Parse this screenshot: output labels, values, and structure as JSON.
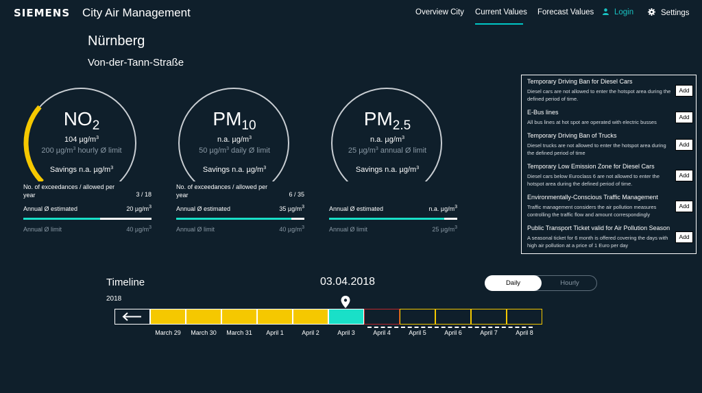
{
  "header": {
    "brand": "SIEMENS",
    "app_title": "City Air Management",
    "nav": [
      "Overview City",
      "Current Values",
      "Forecast Values"
    ],
    "active_nav": "Current Values",
    "login_label": "Login",
    "settings_label": "Settings"
  },
  "location": {
    "city": "Nürnberg",
    "street": "Von-der-Tann-Straße"
  },
  "gauges": [
    {
      "name": "NO",
      "name_sub": "2",
      "value": "104 µg/m",
      "value_sup": "3",
      "limit": "200 µg/m",
      "limit_sup": "3",
      "limit_suffix": " hourly Ø limit",
      "savings": "Savings n.a. µg/m",
      "savings_sup": "3",
      "exceedances_label": "No. of exceedances / allowed per year",
      "exceedances_value": "3 / 18",
      "annual_label": "Annual Ø estimated",
      "annual_value": "20 µg/m",
      "annual_sup": "3",
      "annual_fraction": 0.6,
      "gauge_fraction": 0.32,
      "annual_limit_label": "Annual Ø limit",
      "annual_limit_value": "40 µg/m",
      "annual_limit_sup": "3"
    },
    {
      "name": "PM",
      "name_sub": "10",
      "value": "n.a. µg/m",
      "value_sup": "3",
      "limit": "50 µg/m",
      "limit_sup": "3",
      "limit_suffix": " daily Ø limit",
      "savings": "Savings n.a. µg/m",
      "savings_sup": "3",
      "exceedances_label": "No. of exceedances / allowed per year",
      "exceedances_value": "6 / 35",
      "annual_label": "Annual Ø estimated",
      "annual_value": "35 µg/m",
      "annual_sup": "3",
      "annual_fraction": 0.9,
      "gauge_fraction": 0,
      "annual_limit_label": "Annual Ø limit",
      "annual_limit_value": "40 µg/m",
      "annual_limit_sup": "3"
    },
    {
      "name": "PM",
      "name_sub": "2.5",
      "value": "n.a. µg/m",
      "value_sup": "3",
      "limit": "25 µg/m",
      "limit_sup": "3",
      "limit_suffix": " annual Ø limit",
      "savings": "Savings n.a. µg/m",
      "savings_sup": "3",
      "exceedances_label": "",
      "exceedances_value": "",
      "annual_label": "Annual Ø estimated",
      "annual_value": "n.a. µg/m",
      "annual_sup": "3",
      "annual_fraction": 0.9,
      "gauge_fraction": 0,
      "annual_limit_label": "Annual Ø limit",
      "annual_limit_value": "25 µg/m",
      "annual_limit_sup": "3"
    }
  ],
  "measures": [
    {
      "title": "Temporary Driving Ban for Diesel Cars",
      "description": "Diesel cars are not allowed to enter the hotspot area during the defined period of time.",
      "button": "Add"
    },
    {
      "title": "E-Bus lines",
      "description": "All bus lines at hot spot are operated with electric busses",
      "button": "Add"
    },
    {
      "title": "Temporary Driving Ban of Trucks",
      "description": "Diesel trucks are not allowed to enter the hotspot area during the defined period of time",
      "button": "Add"
    },
    {
      "title": "Temporary Low Emission Zone for Diesel Cars",
      "description": "Diesel cars below Euroclass 6 are not allowed to enter the hotspot area during the defined period of time.",
      "button": "Add"
    },
    {
      "title": "Environmentally-Conscious Traffic Management",
      "description": "Traffic management considers the air pollution measures controlling the traffic flow and amount correspondingly",
      "button": "Add"
    },
    {
      "title": "Public Transport Ticket valid for Air Pollution Season",
      "description": "A seasonal ticket for 6 month is offered covering the days with high air pollution at a price of 1 Euro per day",
      "button": "Add"
    }
  ],
  "timeline": {
    "title": "Timeline",
    "year": "2018",
    "selected_date": "03.04.2018",
    "toggle": {
      "daily": "Daily",
      "hourly": "Hourly",
      "active": "Daily"
    },
    "back_icon": "arrow-left-icon",
    "days": [
      {
        "label": "March 29",
        "status": "past-high",
        "color": "#f5c800"
      },
      {
        "label": "March 30",
        "status": "past-high",
        "color": "#f5c800"
      },
      {
        "label": "March 31",
        "status": "past-high",
        "color": "#f5c800"
      },
      {
        "label": "April 1",
        "status": "past-high",
        "color": "#f5c800"
      },
      {
        "label": "April 2",
        "status": "past-high",
        "color": "#f5c800"
      },
      {
        "label": "April 3",
        "status": "selected",
        "color": "#19e0c8"
      },
      {
        "label": "April 4",
        "status": "forecast-alert",
        "color": "#c0282d"
      },
      {
        "label": "April 5",
        "status": "forecast",
        "color": "#f5c800"
      },
      {
        "label": "April 6",
        "status": "forecast",
        "color": "#f5c800"
      },
      {
        "label": "April 7",
        "status": "forecast",
        "color": "#f5c800"
      },
      {
        "label": "April 8",
        "status": "forecast",
        "color": "#f5c800"
      }
    ]
  },
  "colors": {
    "background": "#0f1f2b",
    "accent": "#19e0c8",
    "gauge_active": "#f5c800",
    "gauge_track": "#ffffff",
    "alert": "#c0282d",
    "muted_text": "#8a99a5"
  }
}
